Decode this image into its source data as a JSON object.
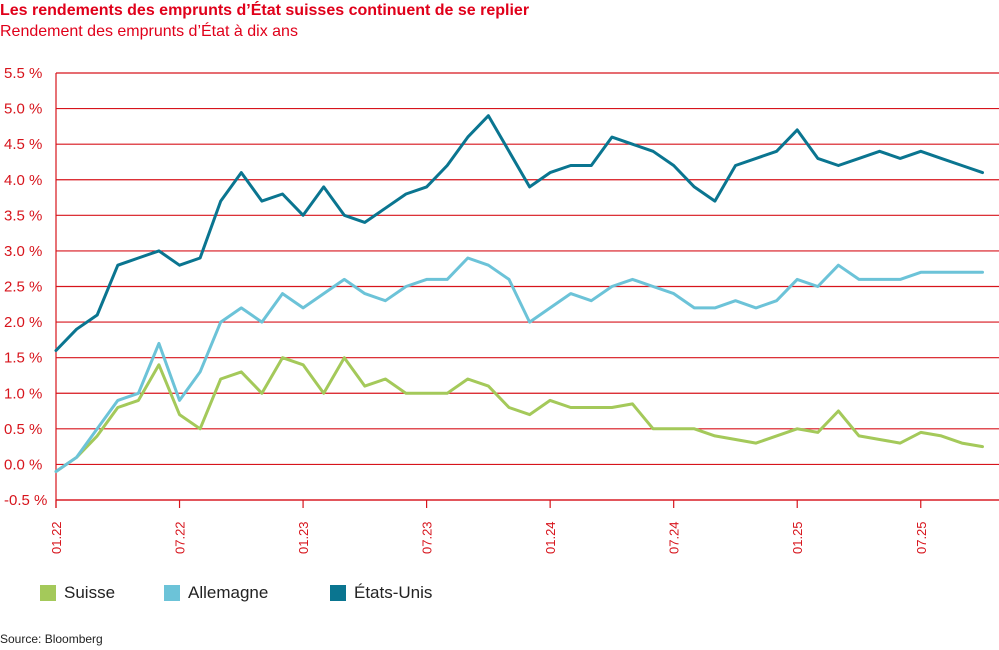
{
  "title": "Les rendements des emprunts d’État suisses continuent de se replier",
  "subtitle": "Rendement des emprunts d’État à dix ans",
  "source": "Source: Bloomberg",
  "colors": {
    "grid": "#d7141c",
    "axis_text": "#d7141c",
    "suisse": "#a4c95a",
    "allemagne": "#6cc3d8",
    "etats_unis": "#0a7590"
  },
  "chart_data": {
    "type": "line",
    "title": "Les rendements des emprunts d’État suisses continuent de se replier",
    "subtitle": "Rendement des emprunts d’État à dix ans",
    "xlabel": "",
    "ylabel": "",
    "ylim": [
      -0.5,
      5.5
    ],
    "y_ticks": [
      -0.5,
      0.0,
      0.5,
      1.0,
      1.5,
      2.0,
      2.5,
      3.0,
      3.5,
      4.0,
      4.5,
      5.0,
      5.5
    ],
    "y_tick_labels": [
      "-0.5 %",
      "0.0 %",
      "0.5 %",
      "1.0 %",
      "1.5 %",
      "2.0 %",
      "2.5 %",
      "3.0 %",
      "3.5 %",
      "4.0 %",
      "4.5 %",
      "5.0 %",
      "5.5 %"
    ],
    "x_range": [
      "2022-01",
      "2025-10"
    ],
    "x_ticks": [
      "2022-01",
      "2022-07",
      "2023-01",
      "2023-07",
      "2024-01",
      "2024-07",
      "2025-01",
      "2025-07"
    ],
    "x_tick_labels": [
      "01.22",
      "07.22",
      "01.23",
      "07.23",
      "01.24",
      "07.24",
      "01.25",
      "07.25"
    ],
    "grid": true,
    "legend_position": "bottom-left",
    "series": [
      {
        "name": "Suisse",
        "color": "#a4c95a",
        "x": [
          "2022-01",
          "2022-02",
          "2022-03",
          "2022-04",
          "2022-05",
          "2022-06",
          "2022-07",
          "2022-08",
          "2022-09",
          "2022-10",
          "2022-11",
          "2022-12",
          "2023-01",
          "2023-02",
          "2023-03",
          "2023-04",
          "2023-05",
          "2023-06",
          "2023-07",
          "2023-08",
          "2023-09",
          "2023-10",
          "2023-11",
          "2023-12",
          "2024-01",
          "2024-02",
          "2024-03",
          "2024-04",
          "2024-05",
          "2024-06",
          "2024-07",
          "2024-08",
          "2024-09",
          "2024-10",
          "2024-11",
          "2024-12",
          "2025-01",
          "2025-02",
          "2025-03",
          "2025-04",
          "2025-05",
          "2025-06",
          "2025-07",
          "2025-08",
          "2025-09",
          "2025-10"
        ],
        "values": [
          -0.1,
          0.1,
          0.4,
          0.8,
          0.9,
          1.4,
          0.7,
          0.5,
          1.2,
          1.3,
          1.0,
          1.5,
          1.4,
          1.0,
          1.5,
          1.1,
          1.2,
          1.0,
          1.0,
          1.0,
          1.2,
          1.1,
          0.8,
          0.7,
          0.9,
          0.8,
          0.8,
          0.8,
          0.85,
          0.5,
          0.5,
          0.5,
          0.4,
          0.35,
          0.3,
          0.4,
          0.5,
          0.45,
          0.75,
          0.4,
          0.35,
          0.3,
          0.45,
          0.4,
          0.3,
          0.25
        ]
      },
      {
        "name": "Allemagne",
        "color": "#6cc3d8",
        "x": [
          "2022-01",
          "2022-02",
          "2022-03",
          "2022-04",
          "2022-05",
          "2022-06",
          "2022-07",
          "2022-08",
          "2022-09",
          "2022-10",
          "2022-11",
          "2022-12",
          "2023-01",
          "2023-02",
          "2023-03",
          "2023-04",
          "2023-05",
          "2023-06",
          "2023-07",
          "2023-08",
          "2023-09",
          "2023-10",
          "2023-11",
          "2023-12",
          "2024-01",
          "2024-02",
          "2024-03",
          "2024-04",
          "2024-05",
          "2024-06",
          "2024-07",
          "2024-08",
          "2024-09",
          "2024-10",
          "2024-11",
          "2024-12",
          "2025-01",
          "2025-02",
          "2025-03",
          "2025-04",
          "2025-05",
          "2025-06",
          "2025-07",
          "2025-08",
          "2025-09",
          "2025-10"
        ],
        "values": [
          -0.1,
          0.1,
          0.5,
          0.9,
          1.0,
          1.7,
          0.9,
          1.3,
          2.0,
          2.2,
          2.0,
          2.4,
          2.2,
          2.4,
          2.6,
          2.4,
          2.3,
          2.5,
          2.6,
          2.6,
          2.9,
          2.8,
          2.6,
          2.0,
          2.2,
          2.4,
          2.3,
          2.5,
          2.6,
          2.5,
          2.4,
          2.2,
          2.2,
          2.3,
          2.2,
          2.3,
          2.6,
          2.5,
          2.8,
          2.6,
          2.6,
          2.6,
          2.7,
          2.7,
          2.7,
          2.7
        ]
      },
      {
        "name": "États-Unis",
        "color": "#0a7590",
        "x": [
          "2022-01",
          "2022-02",
          "2022-03",
          "2022-04",
          "2022-05",
          "2022-06",
          "2022-07",
          "2022-08",
          "2022-09",
          "2022-10",
          "2022-11",
          "2022-12",
          "2023-01",
          "2023-02",
          "2023-03",
          "2023-04",
          "2023-05",
          "2023-06",
          "2023-07",
          "2023-08",
          "2023-09",
          "2023-10",
          "2023-11",
          "2023-12",
          "2024-01",
          "2024-02",
          "2024-03",
          "2024-04",
          "2024-05",
          "2024-06",
          "2024-07",
          "2024-08",
          "2024-09",
          "2024-10",
          "2024-11",
          "2024-12",
          "2025-01",
          "2025-02",
          "2025-03",
          "2025-04",
          "2025-05",
          "2025-06",
          "2025-07",
          "2025-08",
          "2025-09",
          "2025-10"
        ],
        "values": [
          1.6,
          1.9,
          2.1,
          2.8,
          2.9,
          3.0,
          2.8,
          2.9,
          3.7,
          4.1,
          3.7,
          3.8,
          3.5,
          3.9,
          3.5,
          3.4,
          3.6,
          3.8,
          3.9,
          4.2,
          4.6,
          4.9,
          4.4,
          3.9,
          4.1,
          4.2,
          4.2,
          4.6,
          4.5,
          4.4,
          4.2,
          3.9,
          3.7,
          4.2,
          4.3,
          4.4,
          4.7,
          4.3,
          4.2,
          4.3,
          4.4,
          4.3,
          4.4,
          4.3,
          4.2,
          4.1
        ]
      }
    ]
  },
  "legend": [
    {
      "label": "Suisse",
      "color": "#a4c95a"
    },
    {
      "label": "Allemagne",
      "color": "#6cc3d8"
    },
    {
      "label": "États-Unis",
      "color": "#0a7590"
    }
  ]
}
